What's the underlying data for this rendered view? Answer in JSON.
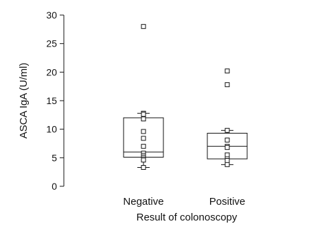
{
  "chart_data": {
    "type": "box",
    "title": "",
    "xlabel": "Result of colonoscopy",
    "ylabel": "ASCA IgA (U/ml)",
    "ylim": [
      0,
      30
    ],
    "yticks": [
      0,
      5,
      10,
      15,
      20,
      25,
      30
    ],
    "grid": false,
    "categories": [
      "Negative",
      "Positive"
    ],
    "boxes": [
      {
        "category": "Negative",
        "whisker_low": 3.3,
        "q1": 5.1,
        "median": 6.0,
        "q3": 12.0,
        "whisker_high": 12.8,
        "points": [
          28.0,
          12.8,
          12.6,
          11.8,
          9.6,
          8.4,
          7.0,
          5.8,
          5.4,
          5.1,
          4.8,
          4.6,
          3.3
        ]
      },
      {
        "category": "Positive",
        "whisker_low": 3.8,
        "q1": 4.8,
        "median": 7.0,
        "q3": 9.3,
        "whisker_high": 9.8,
        "points": [
          20.2,
          17.8,
          9.8,
          8.1,
          7.0,
          6.8,
          5.5,
          4.8,
          4.5,
          3.8
        ]
      }
    ]
  }
}
